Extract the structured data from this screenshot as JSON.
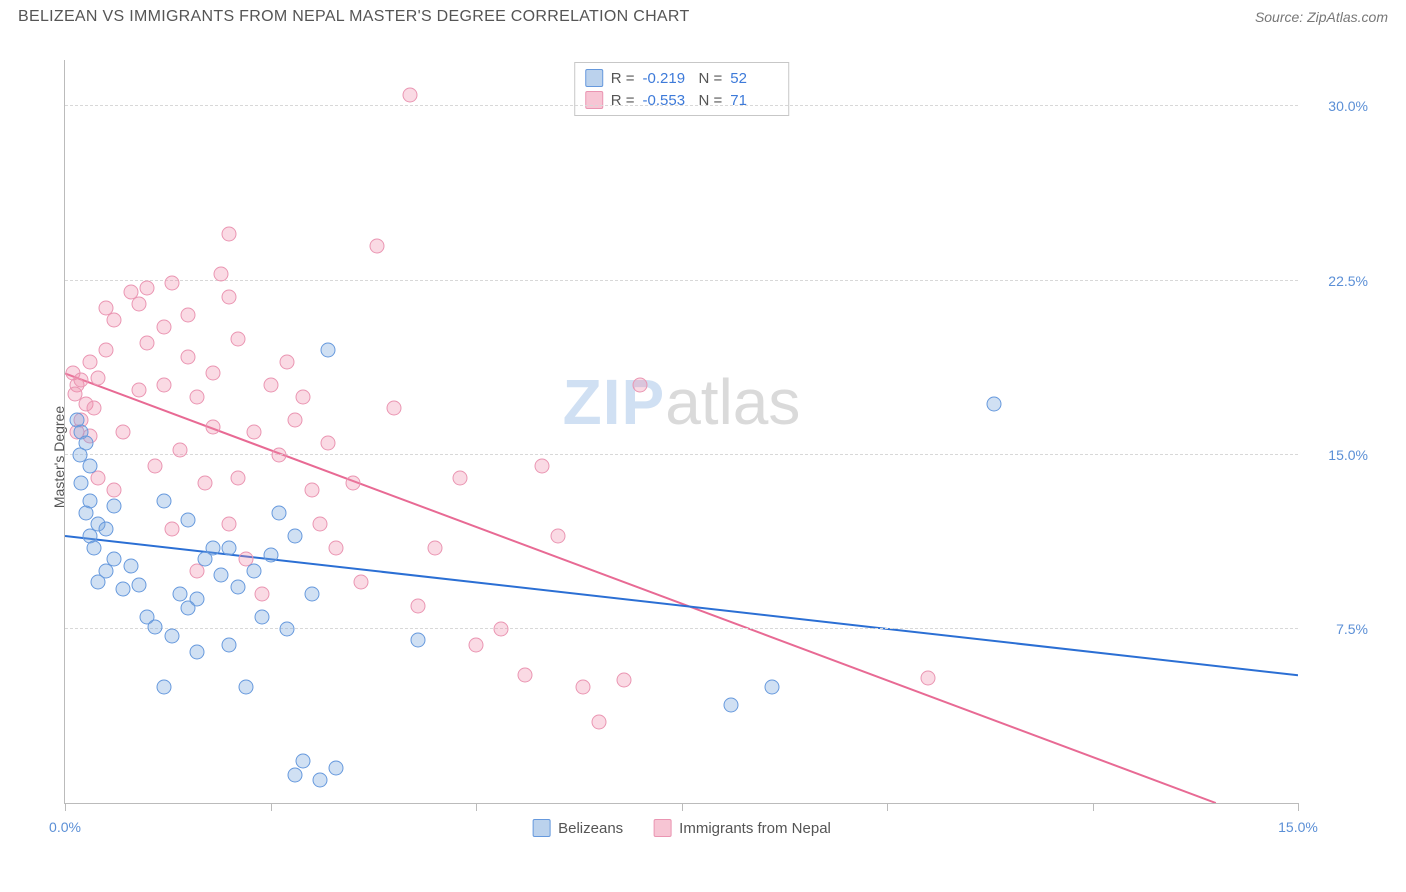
{
  "header": {
    "title": "BELIZEAN VS IMMIGRANTS FROM NEPAL MASTER'S DEGREE CORRELATION CHART",
    "source": "Source: ZipAtlas.com"
  },
  "chart": {
    "type": "scatter",
    "ylabel": "Master's Degree",
    "background_color": "#ffffff",
    "grid_color": "#d8d8d8",
    "axis_color": "#bbbbbb",
    "tick_label_color": "#5b8fd6",
    "xlim": [
      0,
      15
    ],
    "ylim": [
      0,
      32
    ],
    "x_ticks": [
      0,
      2.5,
      5,
      7.5,
      10,
      12.5,
      15
    ],
    "x_tick_labels": [
      "0.0%",
      "",
      "",
      "",
      "",
      "",
      "15.0%"
    ],
    "y_gridlines": [
      7.5,
      15.0,
      22.5,
      30.0
    ],
    "y_tick_labels": [
      "7.5%",
      "15.0%",
      "22.5%",
      "30.0%"
    ],
    "watermark": {
      "part_a": "ZIP",
      "part_b": "atlas"
    },
    "stats": [
      {
        "color": "blue",
        "r_label": "R =",
        "r": "-0.219",
        "n_label": "N =",
        "n": "52"
      },
      {
        "color": "pink",
        "r_label": "R =",
        "r": "-0.553",
        "n_label": "N =",
        "n": "71"
      }
    ],
    "legend": [
      {
        "swatch": "blue",
        "label": "Belizeans"
      },
      {
        "swatch": "pink",
        "label": "Immigrants from Nepal"
      }
    ],
    "series": {
      "blue": {
        "marker_fill": "rgba(120,165,220,0.35)",
        "marker_stroke": "#6699dd",
        "trend_color": "#2b6fd4",
        "trend": {
          "x1": 0,
          "y1": 11.5,
          "x2": 15,
          "y2": 5.5
        },
        "points": [
          [
            0.15,
            16.5
          ],
          [
            0.2,
            16.0
          ],
          [
            0.25,
            15.5
          ],
          [
            0.18,
            15.0
          ],
          [
            0.3,
            14.5
          ],
          [
            0.2,
            13.8
          ],
          [
            0.3,
            13.0
          ],
          [
            0.4,
            12.0
          ],
          [
            0.25,
            12.5
          ],
          [
            0.3,
            11.5
          ],
          [
            0.5,
            11.8
          ],
          [
            0.35,
            11.0
          ],
          [
            0.6,
            10.5
          ],
          [
            0.8,
            10.2
          ],
          [
            0.5,
            10.0
          ],
          [
            0.4,
            9.5
          ],
          [
            0.7,
            9.2
          ],
          [
            0.9,
            9.4
          ],
          [
            1.2,
            13.0
          ],
          [
            1.4,
            9.0
          ],
          [
            1.5,
            12.2
          ],
          [
            1.6,
            8.8
          ],
          [
            1.7,
            10.5
          ],
          [
            1.8,
            11.0
          ],
          [
            1.0,
            8.0
          ],
          [
            1.1,
            7.6
          ],
          [
            1.3,
            7.2
          ],
          [
            1.5,
            8.4
          ],
          [
            1.6,
            6.5
          ],
          [
            1.2,
            5.0
          ],
          [
            2.0,
            11.0
          ],
          [
            2.1,
            9.3
          ],
          [
            2.3,
            10.0
          ],
          [
            2.4,
            8.0
          ],
          [
            2.6,
            12.5
          ],
          [
            2.7,
            7.5
          ],
          [
            2.0,
            6.8
          ],
          [
            2.2,
            5.0
          ],
          [
            2.8,
            11.5
          ],
          [
            3.0,
            9.0
          ],
          [
            3.2,
            19.5
          ],
          [
            3.3,
            1.5
          ],
          [
            2.8,
            1.2
          ],
          [
            2.9,
            1.8
          ],
          [
            4.3,
            7.0
          ],
          [
            3.1,
            1.0
          ],
          [
            8.6,
            5.0
          ],
          [
            8.1,
            4.2
          ],
          [
            11.3,
            17.2
          ],
          [
            2.5,
            10.7
          ],
          [
            1.9,
            9.8
          ],
          [
            0.6,
            12.8
          ]
        ]
      },
      "pink": {
        "marker_fill": "rgba(240,140,170,0.32)",
        "marker_stroke": "#ea95b2",
        "trend_color": "#e86a94",
        "trend": {
          "x1": 0,
          "y1": 18.5,
          "x2": 14,
          "y2": 0
        },
        "points": [
          [
            0.1,
            18.5
          ],
          [
            0.15,
            18.0
          ],
          [
            0.2,
            18.2
          ],
          [
            0.12,
            17.6
          ],
          [
            0.25,
            17.2
          ],
          [
            0.3,
            19.0
          ],
          [
            0.35,
            17.0
          ],
          [
            0.4,
            18.3
          ],
          [
            0.2,
            16.5
          ],
          [
            0.5,
            21.3
          ],
          [
            0.6,
            20.8
          ],
          [
            0.8,
            22.0
          ],
          [
            0.9,
            21.5
          ],
          [
            1.0,
            22.2
          ],
          [
            1.2,
            18.0
          ],
          [
            1.3,
            22.4
          ],
          [
            1.5,
            21.0
          ],
          [
            1.6,
            17.5
          ],
          [
            1.8,
            18.5
          ],
          [
            1.9,
            22.8
          ],
          [
            2.0,
            24.5
          ],
          [
            2.1,
            20.0
          ],
          [
            2.3,
            16.0
          ],
          [
            2.5,
            18.0
          ],
          [
            2.6,
            15.0
          ],
          [
            2.8,
            16.5
          ],
          [
            3.0,
            13.5
          ],
          [
            3.1,
            12.0
          ],
          [
            3.3,
            11.0
          ],
          [
            3.5,
            13.8
          ],
          [
            3.8,
            24.0
          ],
          [
            4.0,
            17.0
          ],
          [
            4.2,
            30.5
          ],
          [
            4.5,
            11.0
          ],
          [
            4.8,
            14.0
          ],
          [
            5.0,
            6.8
          ],
          [
            5.3,
            7.5
          ],
          [
            5.6,
            5.5
          ],
          [
            5.8,
            14.5
          ],
          [
            6.0,
            11.5
          ],
          [
            6.3,
            5.0
          ],
          [
            6.5,
            3.5
          ],
          [
            6.8,
            5.3
          ],
          [
            7.0,
            18.0
          ],
          [
            10.5,
            5.4
          ],
          [
            0.4,
            14.0
          ],
          [
            0.7,
            16.0
          ],
          [
            1.1,
            14.5
          ],
          [
            1.4,
            15.2
          ],
          [
            1.7,
            13.8
          ],
          [
            2.0,
            12.0
          ],
          [
            2.2,
            10.5
          ],
          [
            2.4,
            9.0
          ],
          [
            2.0,
            21.8
          ],
          [
            1.2,
            20.5
          ],
          [
            0.9,
            17.8
          ],
          [
            1.5,
            19.2
          ],
          [
            0.5,
            19.5
          ],
          [
            1.0,
            19.8
          ],
          [
            2.7,
            19.0
          ],
          [
            2.9,
            17.5
          ],
          [
            0.3,
            15.8
          ],
          [
            1.8,
            16.2
          ],
          [
            3.2,
            15.5
          ],
          [
            3.6,
            9.5
          ],
          [
            4.3,
            8.5
          ],
          [
            0.15,
            16.0
          ],
          [
            0.6,
            13.5
          ],
          [
            1.3,
            11.8
          ],
          [
            2.1,
            14.0
          ],
          [
            1.6,
            10.0
          ]
        ]
      }
    }
  }
}
